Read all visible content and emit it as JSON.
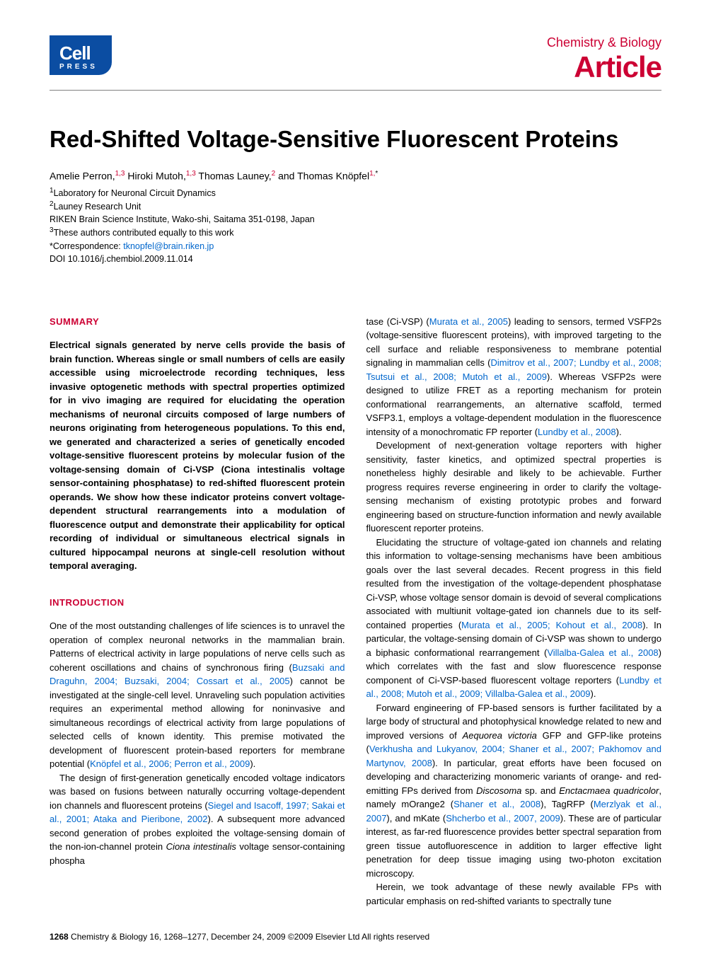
{
  "header": {
    "logo_main": "Cell",
    "logo_sub": "PRESS",
    "journal": "Chemistry & Biology",
    "label": "Article"
  },
  "title": "Red-Shifted Voltage-Sensitive Fluorescent Proteins",
  "authors": {
    "a1": "Amelie Perron,",
    "a1sup": "1,3",
    "a2": " Hiroki Mutoh,",
    "a2sup": "1,3",
    "a3": " Thomas Launey,",
    "a3sup": "2",
    "a4": " and Thomas Knöpfel",
    "a4sup": "1,",
    "a4star": "*"
  },
  "affil": {
    "l1sup": "1",
    "l1": "Laboratory for Neuronal Circuit Dynamics",
    "l2sup": "2",
    "l2": "Launey Research Unit",
    "l3": "RIKEN Brain Science Institute, Wako-shi, Saitama 351-0198, Japan",
    "l4sup": "3",
    "l4": "These authors contributed equally to this work",
    "l5star": "*",
    "l5": "Correspondence: ",
    "email": "tknopfel@brain.riken.jp",
    "doi": "DOI 10.1016/j.chembiol.2009.11.014"
  },
  "sections": {
    "summary_head": "SUMMARY",
    "summary": "Electrical signals generated by nerve cells provide the basis of brain function. Whereas single or small numbers of cells are easily accessible using microelectrode recording techniques, less invasive optogenetic methods with spectral properties optimized for in vivo imaging are required for elucidating the operation mechanisms of neuronal circuits composed of large numbers of neurons originating from heterogeneous populations. To this end, we generated and characterized a series of genetically encoded voltage-sensitive fluorescent proteins by molecular fusion of the voltage-sensing domain of Ci-VSP (Ciona intestinalis voltage sensor-containing phosphatase) to red-shifted fluorescent protein operands. We show how these indicator proteins convert voltage-dependent structural rearrangements into a modulation of fluorescence output and demonstrate their applicability for optical recording of individual or simultaneous electrical signals in cultured hippocampal neurons at single-cell resolution without temporal averaging.",
    "intro_head": "INTRODUCTION",
    "intro_p1a": "One of the most outstanding challenges of life sciences is to unravel the operation of complex neuronal networks in the mammalian brain. Patterns of electrical activity in large populations of nerve cells such as coherent oscillations and chains of synchronous firing (",
    "intro_p1_c1": "Buzsaki and Draguhn, 2004; Buzsaki, 2004; Cossart et al., 2005",
    "intro_p1b": ") cannot be investigated at the single-cell level. Unraveling such population activities requires an experimental method allowing for noninvasive and simultaneous recordings of electrical activity from large populations of selected cells of known identity. This premise motivated the development of fluorescent protein-based reporters for membrane potential (",
    "intro_p1_c2": "Knöpfel et al., 2006; Perron et al., 2009",
    "intro_p1c": ").",
    "intro_p2a": "The design of first-generation genetically encoded voltage indicators was based on fusions between naturally occurring voltage-dependent ion channels and fluorescent proteins (",
    "intro_p2_c1": "Siegel and Isacoff, 1997; Sakai et al., 2001; Ataka and Pieribone, 2002",
    "intro_p2b": "). A subsequent more advanced second generation of probes exploited the voltage-sensing domain of the non-ion-channel protein ",
    "intro_p2_ital": "Ciona intestinalis",
    "intro_p2c": " voltage sensor-containing phospha",
    "r_p1a": "tase (Ci-VSP) (",
    "r_p1_c1": "Murata et al., 2005",
    "r_p1b": ") leading to sensors, termed VSFP2s (voltage-sensitive fluorescent proteins), with improved targeting to the cell surface and reliable responsiveness to membrane potential signaling in mammalian cells (",
    "r_p1_c2": "Dimitrov et al., 2007; Lundby et al., 2008; Tsutsui et al., 2008; Mutoh et al., 2009",
    "r_p1c": "). Whereas VSFP2s were designed to utilize FRET as a reporting mechanism for protein conformational rearrangements, an alternative scaffold, termed VSFP3.1, employs a voltage-dependent modulation in the fluorescence intensity of a monochromatic FP reporter (",
    "r_p1_c3": "Lundby et al., 2008",
    "r_p1d": ").",
    "r_p2": "Development of next-generation voltage reporters with higher sensitivity, faster kinetics, and optimized spectral properties is nonetheless highly desirable and likely to be achievable. Further progress requires reverse engineering in order to clarify the voltage-sensing mechanism of existing prototypic probes and forward engineering based on structure-function information and newly available fluorescent reporter proteins.",
    "r_p3a": "Elucidating the structure of voltage-gated ion channels and relating this information to voltage-sensing mechanisms have been ambitious goals over the last several decades. Recent progress in this field resulted from the investigation of the voltage-dependent phosphatase Ci-VSP, whose voltage sensor domain is devoid of several complications associated with multiunit voltage-gated ion channels due to its self-contained properties (",
    "r_p3_c1": "Murata et al., 2005; Kohout et al., 2008",
    "r_p3b": "). In particular, the voltage-sensing domain of Ci-VSP was shown to undergo a biphasic conformational rearrangement (",
    "r_p3_c2": "Villalba-Galea et al., 2008",
    "r_p3c": ") which correlates with the fast and slow fluorescence response component of Ci-VSP-based fluorescent voltage reporters (",
    "r_p3_c3": "Lundby et al., 2008; Mutoh et al., 2009; Villalba-Galea et al., 2009",
    "r_p3d": ").",
    "r_p4a": "Forward engineering of FP-based sensors is further facilitated by a large body of structural and photophysical knowledge related to new and improved versions of ",
    "r_p4_ital1": "Aequorea victoria",
    "r_p4b": " GFP and GFP-like proteins (",
    "r_p4_c1": "Verkhusha and Lukyanov, 2004; Shaner et al., 2007; Pakhomov and Martynov, 2008",
    "r_p4c": "). In particular, great efforts have been focused on developing and characterizing monomeric variants of orange- and red-emitting FPs derived from ",
    "r_p4_ital2": "Discosoma",
    "r_p4d": " sp. and ",
    "r_p4_ital3": "Enctacmaea quadricolor",
    "r_p4e": ", namely mOrange2 (",
    "r_p4_c2": "Shaner et al., 2008",
    "r_p4f": "), TagRFP (",
    "r_p4_c3": "Merzlyak et al., 2007",
    "r_p4g": "), and mKate (",
    "r_p4_c4": "Shcherbo et al., 2007, 2009",
    "r_p4h": "). These are of particular interest, as far-red fluorescence provides better spectral separation from green tissue autofluorescence in addition to larger effective light penetration for deep tissue imaging using two-photon excitation microscopy.",
    "r_p5": "Herein, we took advantage of these newly available FPs with particular emphasis on red-shifted variants to spectrally tune"
  },
  "footer": {
    "page": "1268",
    "rest": " Chemistry & Biology 16, 1268–1277, December 24, 2009 ©2009 Elsevier Ltd All rights reserved"
  }
}
